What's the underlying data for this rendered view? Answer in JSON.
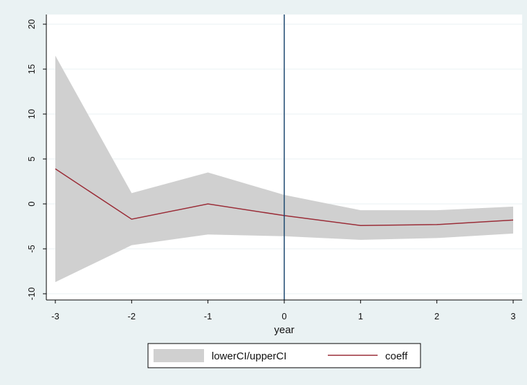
{
  "chart_data": {
    "type": "area",
    "title": "",
    "xlabel": "year",
    "ylabel": "",
    "x": [
      -3,
      -2,
      -1,
      0,
      1,
      2,
      3
    ],
    "xticks": [
      "-3",
      "-2",
      "-1",
      "0",
      "1",
      "2",
      "3"
    ],
    "yticks": [
      "-10",
      "-5",
      "0",
      "5",
      "10",
      "15",
      "20"
    ],
    "xlim": [
      -3,
      3
    ],
    "ylim": [
      -10,
      20
    ],
    "reference_line_x": 0,
    "grid": "horizontal",
    "legend_position": "bottom",
    "series": [
      {
        "name": "lowerCI/upperCI",
        "kind": "band",
        "color": "#d0d0d0",
        "lower": [
          -8.7,
          -4.6,
          -3.4,
          -3.6,
          -4.0,
          -3.8,
          -3.3
        ],
        "upper": [
          16.5,
          1.2,
          3.5,
          1.0,
          -0.7,
          -0.7,
          -0.3
        ]
      },
      {
        "name": "coeff",
        "kind": "line",
        "color": "#9a2b36",
        "values": [
          3.9,
          -1.7,
          0.0,
          -1.3,
          -2.4,
          -2.3,
          -1.8
        ]
      }
    ],
    "colors": {
      "background": "#eaf2f3",
      "plot_bg": "#ffffff",
      "refline": "#1a476f",
      "grid": "#eaf2f3"
    }
  }
}
